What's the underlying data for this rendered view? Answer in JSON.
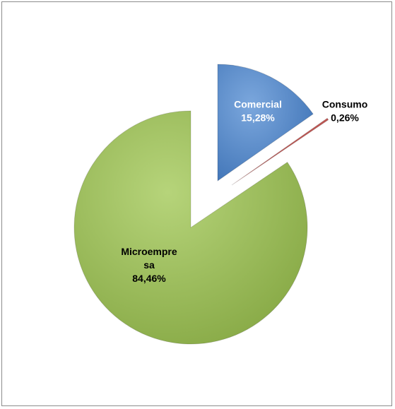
{
  "chart_data": {
    "type": "pie",
    "title": "",
    "exploded": true,
    "slices": [
      {
        "name": "Comercial",
        "label": "Comercial",
        "value": 15.28,
        "display": "15,28%",
        "color": "#4f81bd",
        "label_color": "#ffffff"
      },
      {
        "name": "Consumo",
        "label": "Consumo",
        "value": 0.26,
        "display": "0,26%",
        "color": "#c0504d",
        "label_color": "#000000"
      },
      {
        "name": "Microempresa",
        "label_lines": [
          "Microempre",
          "sa"
        ],
        "value": 84.46,
        "display": "84,46%",
        "color": "#9bbb59",
        "label_color": "#000000"
      }
    ]
  }
}
